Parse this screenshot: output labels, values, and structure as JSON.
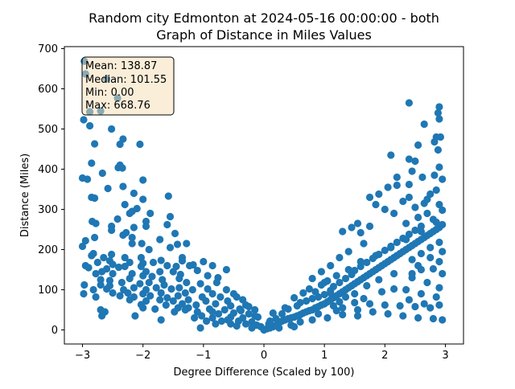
{
  "chart_data": {
    "type": "scatter",
    "title": "Random city Edmonton at 2024-05-16 00:00:00  - both\nGraph of Distance in Miles Values",
    "xlabel": "Degree Difference (Scaled by 100)",
    "ylabel": "Distance (Miles)",
    "xlim": [
      -3.3,
      3.3
    ],
    "ylim": [
      -35,
      705
    ],
    "xticks": [
      -3,
      -2,
      -1,
      0,
      1,
      2,
      3
    ],
    "yticks": [
      0,
      100,
      200,
      300,
      400,
      500,
      600,
      700
    ],
    "marker_color": "#1f77b4",
    "grid": false,
    "stats_box": [
      "Mean: 138.87",
      "Median: 101.55",
      "Min: 0.00",
      "Max: 668.76"
    ],
    "stats_box_placement": "top-left",
    "points": [
      [
        -2.97,
        668.76
      ],
      [
        -2.95,
        637
      ],
      [
        -2.7,
        545
      ],
      [
        -2.88,
        543
      ],
      [
        -2.98,
        523
      ],
      [
        -2.42,
        577
      ],
      [
        -2.6,
        625
      ],
      [
        -2.52,
        500
      ],
      [
        -2.88,
        508
      ],
      [
        -2.33,
        475
      ],
      [
        -2.38,
        462
      ],
      [
        -2.05,
        462
      ],
      [
        -2.8,
        463
      ],
      [
        -2.85,
        415
      ],
      [
        -2.38,
        410
      ],
      [
        -2.41,
        404
      ],
      [
        -2.34,
        403
      ],
      [
        -2.67,
        390
      ],
      [
        -3.0,
        378
      ],
      [
        -2.92,
        375
      ],
      [
        -2.0,
        373
      ],
      [
        -2.33,
        357
      ],
      [
        -2.58,
        352
      ],
      [
        -2.85,
        330
      ],
      [
        -2.8,
        328
      ],
      [
        -2.15,
        340
      ],
      [
        -2.0,
        325
      ],
      [
        -2.3,
        312
      ],
      [
        -1.58,
        333
      ],
      [
        -2.1,
        302
      ],
      [
        -2.18,
        295
      ],
      [
        -2.22,
        290
      ],
      [
        -1.88,
        290
      ],
      [
        -2.42,
        276
      ],
      [
        -1.95,
        270
      ],
      [
        -2.84,
        270
      ],
      [
        -2.78,
        265
      ],
      [
        -1.55,
        282
      ],
      [
        -1.6,
        262
      ],
      [
        -1.95,
        258
      ],
      [
        -2.52,
        258
      ],
      [
        -2.15,
        255
      ],
      [
        -2.52,
        248
      ],
      [
        -2.28,
        242
      ],
      [
        -2.33,
        236
      ],
      [
        -1.47,
        240
      ],
      [
        -2.18,
        230
      ],
      [
        -2.8,
        230
      ],
      [
        -1.72,
        225
      ],
      [
        -2.95,
        222
      ],
      [
        -2.02,
        215
      ],
      [
        -2.18,
        215
      ],
      [
        -1.28,
        215
      ],
      [
        -1.43,
        213
      ],
      [
        -3.0,
        208
      ],
      [
        -1.55,
        205
      ],
      [
        -1.9,
        200
      ],
      [
        -2.82,
        190
      ],
      [
        -2.52,
        188
      ],
      [
        -2.85,
        185
      ],
      [
        -2.65,
        180
      ],
      [
        -2.3,
        180
      ],
      [
        -2.03,
        180
      ],
      [
        -1.35,
        180
      ],
      [
        -1.7,
        173
      ],
      [
        -2.55,
        172
      ],
      [
        -2.75,
        168
      ],
      [
        -1.35,
        172
      ],
      [
        -2.22,
        168
      ],
      [
        -2.0,
        166
      ],
      [
        -1.83,
        168
      ],
      [
        -1.0,
        170
      ],
      [
        -2.5,
        163
      ],
      [
        -1.17,
        162
      ],
      [
        -2.95,
        160
      ],
      [
        -2.9,
        155
      ],
      [
        -2.6,
        152
      ],
      [
        -2.4,
        156
      ],
      [
        -2.3,
        158
      ],
      [
        -2.03,
        158
      ],
      [
        -1.6,
        160
      ],
      [
        -1.45,
        158
      ],
      [
        -1.23,
        160
      ],
      [
        -0.85,
        160
      ],
      [
        -2.68,
        145
      ],
      [
        -2.78,
        140
      ],
      [
        -2.5,
        140
      ],
      [
        -2.18,
        140
      ],
      [
        -1.95,
        145
      ],
      [
        -1.72,
        145
      ],
      [
        -1.5,
        145
      ],
      [
        -1.1,
        148
      ],
      [
        -0.62,
        150
      ],
      [
        -2.0,
        135
      ],
      [
        -1.85,
        133
      ],
      [
        -1.38,
        138
      ],
      [
        -0.93,
        135
      ],
      [
        -2.7,
        125
      ],
      [
        -2.55,
        123
      ],
      [
        -2.22,
        128
      ],
      [
        -1.68,
        125
      ],
      [
        -1.4,
        128
      ],
      [
        -0.76,
        130
      ],
      [
        -2.97,
        112
      ],
      [
        -2.7,
        112
      ],
      [
        -2.55,
        110
      ],
      [
        -2.35,
        118
      ],
      [
        -2.05,
        115
      ],
      [
        -1.9,
        118
      ],
      [
        -1.65,
        112
      ],
      [
        -1.28,
        118
      ],
      [
        -1.05,
        115
      ],
      [
        -0.78,
        118
      ],
      [
        -2.82,
        100
      ],
      [
        -2.6,
        102
      ],
      [
        -2.32,
        100
      ],
      [
        -2.15,
        105
      ],
      [
        -1.95,
        100
      ],
      [
        -1.78,
        105
      ],
      [
        -1.53,
        102
      ],
      [
        -1.4,
        105
      ],
      [
        -1.18,
        100
      ],
      [
        -0.93,
        102
      ],
      [
        -0.62,
        100
      ],
      [
        -2.98,
        90
      ],
      [
        -2.5,
        92
      ],
      [
        -2.25,
        92
      ],
      [
        -2.0,
        90
      ],
      [
        -1.7,
        92
      ],
      [
        -1.3,
        92
      ],
      [
        -0.85,
        90
      ],
      [
        -0.5,
        90
      ],
      [
        -2.78,
        82
      ],
      [
        -2.38,
        85
      ],
      [
        -2.15,
        82
      ],
      [
        -1.88,
        85
      ],
      [
        -1.6,
        80
      ],
      [
        -1.42,
        85
      ],
      [
        -1.02,
        82
      ],
      [
        -0.72,
        82
      ],
      [
        -0.45,
        82
      ],
      [
        -2.22,
        75
      ],
      [
        -1.95,
        72
      ],
      [
        -1.72,
        75
      ],
      [
        -1.5,
        72
      ],
      [
        -1.25,
        75
      ],
      [
        -0.96,
        72
      ],
      [
        -0.6,
        72
      ],
      [
        -0.35,
        75
      ],
      [
        -2.03,
        63
      ],
      [
        -1.62,
        62
      ],
      [
        -1.35,
        65
      ],
      [
        -1.12,
        62
      ],
      [
        -0.8,
        65
      ],
      [
        -0.55,
        60
      ],
      [
        -0.3,
        62
      ],
      [
        -2.0,
        55
      ],
      [
        -1.8,
        52
      ],
      [
        -1.42,
        55
      ],
      [
        -1.25,
        55
      ],
      [
        -0.9,
        52
      ],
      [
        -0.65,
        50
      ],
      [
        -0.4,
        52
      ],
      [
        -0.15,
        50
      ],
      [
        -2.7,
        50
      ],
      [
        -2.63,
        45
      ],
      [
        -2.68,
        35
      ],
      [
        -2.13,
        35
      ],
      [
        -1.48,
        45
      ],
      [
        -1.1,
        45
      ],
      [
        -0.75,
        40
      ],
      [
        -0.5,
        42
      ],
      [
        -0.25,
        40
      ],
      [
        -1.03,
        35
      ],
      [
        -0.85,
        30
      ],
      [
        -0.55,
        32
      ],
      [
        -0.35,
        30
      ],
      [
        -0.1,
        32
      ],
      [
        -1.7,
        25
      ],
      [
        -0.95,
        22
      ],
      [
        -0.7,
        22
      ],
      [
        -0.42,
        22
      ],
      [
        -0.2,
        20
      ],
      [
        -1.05,
        5
      ],
      [
        -0.8,
        15
      ],
      [
        -0.55,
        15
      ],
      [
        -0.3,
        15
      ],
      [
        -0.12,
        12
      ],
      [
        -0.05,
        8
      ],
      [
        0.0,
        0
      ],
      [
        0.05,
        3
      ],
      [
        0.1,
        5
      ],
      [
        0.15,
        8
      ],
      [
        0.2,
        12
      ],
      [
        0.08,
        15
      ],
      [
        0.25,
        18
      ],
      [
        0.3,
        22
      ],
      [
        0.35,
        25
      ],
      [
        0.4,
        28
      ],
      [
        0.45,
        30
      ],
      [
        0.5,
        32
      ],
      [
        0.2,
        28
      ],
      [
        0.55,
        35
      ],
      [
        0.6,
        38
      ],
      [
        0.3,
        40
      ],
      [
        0.65,
        42
      ],
      [
        0.7,
        45
      ],
      [
        0.75,
        48
      ],
      [
        0.8,
        50
      ],
      [
        0.4,
        52
      ],
      [
        0.85,
        55
      ],
      [
        0.9,
        58
      ],
      [
        0.55,
        60
      ],
      [
        0.95,
        62
      ],
      [
        1.0,
        65
      ],
      [
        0.6,
        68
      ],
      [
        1.05,
        70
      ],
      [
        0.7,
        72
      ],
      [
        1.1,
        75
      ],
      [
        0.8,
        78
      ],
      [
        1.15,
        80
      ],
      [
        0.9,
        82
      ],
      [
        1.2,
        85
      ],
      [
        1.0,
        88
      ],
      [
        1.25,
        90
      ],
      [
        0.65,
        92
      ],
      [
        1.3,
        95
      ],
      [
        1.1,
        98
      ],
      [
        1.35,
        100
      ],
      [
        0.75,
        102
      ],
      [
        1.4,
        105
      ],
      [
        1.15,
        108
      ],
      [
        1.45,
        110
      ],
      [
        0.95,
        112
      ],
      [
        1.5,
        115
      ],
      [
        1.25,
        118
      ],
      [
        1.55,
        120
      ],
      [
        1.05,
        122
      ],
      [
        1.6,
        125
      ],
      [
        1.35,
        128
      ],
      [
        1.65,
        130
      ],
      [
        1.7,
        135
      ],
      [
        1.45,
        138
      ],
      [
        1.75,
        140
      ],
      [
        1.8,
        145
      ],
      [
        1.5,
        148
      ],
      [
        1.85,
        150
      ],
      [
        1.9,
        155
      ],
      [
        1.6,
        158
      ],
      [
        1.95,
        160
      ],
      [
        2.0,
        165
      ],
      [
        1.7,
        168
      ],
      [
        2.05,
        170
      ],
      [
        2.1,
        175
      ],
      [
        1.8,
        178
      ],
      [
        2.15,
        180
      ],
      [
        2.2,
        185
      ],
      [
        1.9,
        188
      ],
      [
        2.25,
        190
      ],
      [
        2.3,
        195
      ],
      [
        2.0,
        198
      ],
      [
        2.35,
        200
      ],
      [
        2.4,
        205
      ],
      [
        2.1,
        208
      ],
      [
        2.45,
        210
      ],
      [
        2.5,
        215
      ],
      [
        2.2,
        218
      ],
      [
        2.55,
        220
      ],
      [
        2.6,
        225
      ],
      [
        2.3,
        228
      ],
      [
        2.65,
        230
      ],
      [
        2.7,
        235
      ],
      [
        2.4,
        238
      ],
      [
        2.75,
        240
      ],
      [
        2.8,
        245
      ],
      [
        2.5,
        248
      ],
      [
        2.85,
        250
      ],
      [
        2.9,
        255
      ],
      [
        2.6,
        258
      ],
      [
        2.95,
        262
      ],
      [
        1.15,
        60
      ],
      [
        1.3,
        55
      ],
      [
        1.55,
        50
      ],
      [
        1.8,
        45
      ],
      [
        2.05,
        40
      ],
      [
        2.3,
        35
      ],
      [
        2.55,
        30
      ],
      [
        2.8,
        28
      ],
      [
        2.95,
        25
      ],
      [
        1.25,
        70
      ],
      [
        1.5,
        68
      ],
      [
        1.75,
        65
      ],
      [
        2.0,
        62
      ],
      [
        2.25,
        60
      ],
      [
        2.5,
        58
      ],
      [
        2.75,
        55
      ],
      [
        1.0,
        118
      ],
      [
        1.2,
        135
      ],
      [
        1.4,
        150
      ],
      [
        1.6,
        170
      ],
      [
        1.85,
        185
      ],
      [
        2.1,
        205
      ],
      [
        2.35,
        225
      ],
      [
        2.6,
        245
      ],
      [
        2.85,
        268
      ],
      [
        2.3,
        320
      ],
      [
        2.4,
        330
      ],
      [
        2.5,
        305
      ],
      [
        2.65,
        315
      ],
      [
        2.7,
        325
      ],
      [
        2.75,
        338
      ],
      [
        2.85,
        348
      ],
      [
        2.9,
        312
      ],
      [
        2.95,
        298
      ],
      [
        2.55,
        280
      ],
      [
        2.7,
        290
      ],
      [
        2.8,
        275
      ],
      [
        2.35,
        265
      ],
      [
        2.15,
        290
      ],
      [
        2.0,
        300
      ],
      [
        1.85,
        312
      ],
      [
        1.75,
        330
      ],
      [
        1.9,
        338
      ],
      [
        2.05,
        355
      ],
      [
        2.2,
        360
      ],
      [
        2.4,
        362
      ],
      [
        2.2,
        380
      ],
      [
        2.45,
        395
      ],
      [
        2.62,
        380
      ],
      [
        2.4,
        425
      ],
      [
        2.1,
        435
      ],
      [
        2.5,
        420
      ],
      [
        2.9,
        405
      ],
      [
        2.82,
        385
      ],
      [
        2.95,
        375
      ],
      [
        2.55,
        460
      ],
      [
        2.82,
        468
      ],
      [
        2.85,
        480
      ],
      [
        2.92,
        480
      ],
      [
        2.65,
        512
      ],
      [
        2.9,
        525
      ],
      [
        2.88,
        540
      ],
      [
        2.9,
        555
      ],
      [
        2.4,
        565
      ],
      [
        2.88,
        448
      ],
      [
        2.45,
        175
      ],
      [
        2.6,
        190
      ],
      [
        2.75,
        205
      ],
      [
        2.9,
        218
      ],
      [
        2.55,
        160
      ],
      [
        2.8,
        152
      ],
      [
        2.95,
        140
      ],
      [
        2.45,
        130
      ],
      [
        2.7,
        118
      ],
      [
        2.9,
        105
      ],
      [
        2.35,
        100
      ],
      [
        2.6,
        90
      ],
      [
        2.85,
        82
      ],
      [
        2.4,
        75
      ],
      [
        2.65,
        65
      ],
      [
        2.9,
        62
      ],
      [
        1.95,
        95
      ],
      [
        2.15,
        102
      ],
      [
        1.7,
        110
      ],
      [
        1.9,
        125
      ],
      [
        2.15,
        140
      ],
      [
        1.5,
        90
      ],
      [
        1.65,
        78
      ],
      [
        1.35,
        82
      ],
      [
        1.1,
        92
      ],
      [
        0.85,
        95
      ],
      [
        0.5,
        80
      ],
      [
        0.35,
        55
      ],
      [
        0.15,
        42
      ],
      [
        0.1,
        22
      ],
      [
        0.45,
        12
      ],
      [
        0.6,
        20
      ],
      [
        0.8,
        25
      ],
      [
        1.05,
        30
      ],
      [
        1.3,
        38
      ],
      [
        1.55,
        35
      ],
      [
        0.9,
        40
      ],
      [
        1.2,
        48
      ],
      [
        0.25,
        5
      ],
      [
        0.5,
        8
      ],
      [
        -0.2,
        5
      ],
      [
        -0.45,
        10
      ],
      [
        -0.6,
        25
      ],
      [
        -0.85,
        45
      ],
      [
        -1.15,
        30
      ],
      [
        -1.3,
        50
      ],
      [
        -0.38,
        48
      ],
      [
        -0.25,
        58
      ],
      [
        -0.15,
        35
      ],
      [
        1.6,
        242
      ],
      [
        1.75,
        258
      ],
      [
        1.55,
        265
      ],
      [
        1.45,
        255
      ],
      [
        1.3,
        245
      ],
      [
        1.65,
        215
      ],
      [
        1.4,
        195
      ],
      [
        1.25,
        180
      ],
      [
        1.1,
        160
      ],
      [
        0.95,
        145
      ],
      [
        0.8,
        128
      ],
      [
        2.9,
        170
      ],
      [
        2.75,
        180
      ],
      [
        2.95,
        195
      ],
      [
        2.6,
        150
      ],
      [
        2.45,
        140
      ]
    ]
  }
}
